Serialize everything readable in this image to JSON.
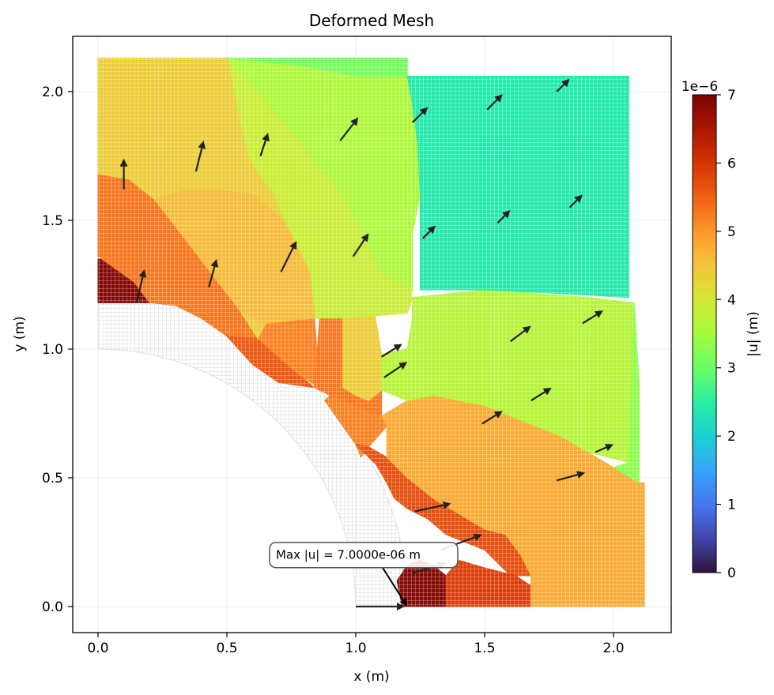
{
  "chart_data": {
    "type": "heatmap",
    "title": "Deformed Mesh",
    "xlabel": "x (m)",
    "ylabel": "y (m)",
    "xlim": [
      -0.1,
      2.22
    ],
    "ylim": [
      -0.1,
      2.22
    ],
    "xticks": [
      0.0,
      0.5,
      1.0,
      1.5,
      2.0
    ],
    "xtick_labels": [
      "0.0",
      "0.5",
      "1.0",
      "1.5",
      "2.0"
    ],
    "yticks": [
      0.0,
      0.5,
      1.0,
      1.5,
      2.0
    ],
    "ytick_labels": [
      "0.0",
      "0.5",
      "1.0",
      "1.5",
      "2.0"
    ],
    "grid": true,
    "colormap": "turbo",
    "colorbar": {
      "label": "|u| (m)",
      "scale_label": "1e−6",
      "vmin": 0,
      "vmax": 7,
      "ticks": [
        0,
        1,
        2,
        3,
        4,
        5,
        6,
        7
      ],
      "tick_labels": [
        "0",
        "1",
        "2",
        "3",
        "4",
        "5",
        "6",
        "7"
      ]
    },
    "undeformed_region": {
      "outer_quarter_circle_radius": 1.2,
      "inner_quarter_circle_radius": 1.0,
      "color": "#d8d8d8"
    },
    "regions": [
      {
        "value": 6.9,
        "points": [
          [
            0.0,
            1.35
          ],
          [
            0.12,
            1.33
          ],
          [
            0.18,
            1.25
          ],
          [
            0.22,
            1.18
          ],
          [
            0.0,
            1.18
          ]
        ]
      },
      {
        "value": 5.3,
        "points": [
          [
            0.0,
            1.68
          ],
          [
            0.12,
            1.66
          ],
          [
            0.22,
            1.58
          ],
          [
            0.32,
            1.45
          ],
          [
            0.42,
            1.32
          ],
          [
            0.55,
            1.15
          ],
          [
            0.62,
            1.04
          ],
          [
            0.5,
            1.05
          ],
          [
            0.4,
            1.12
          ],
          [
            0.3,
            1.17
          ],
          [
            0.2,
            1.18
          ],
          [
            0.14,
            1.26
          ],
          [
            0.0,
            1.36
          ]
        ]
      },
      {
        "value": 5.6,
        "points": [
          [
            0.62,
            1.04
          ],
          [
            0.7,
            0.97
          ],
          [
            0.78,
            0.9
          ],
          [
            0.84,
            0.85
          ],
          [
            0.7,
            0.87
          ],
          [
            0.6,
            0.94
          ],
          [
            0.5,
            1.05
          ]
        ]
      },
      {
        "value": 5.2,
        "points": [
          [
            0.62,
            1.04
          ],
          [
            0.65,
            1.1
          ],
          [
            0.84,
            1.12
          ],
          [
            0.86,
            0.85
          ],
          [
            0.78,
            0.9
          ]
        ]
      },
      {
        "value": 5.3,
        "points": [
          [
            0.84,
            0.85
          ],
          [
            0.86,
            1.12
          ],
          [
            0.95,
            1.12
          ],
          [
            0.95,
            0.85
          ],
          [
            1.0,
            0.82
          ],
          [
            1.05,
            0.8
          ],
          [
            1.1,
            0.84
          ],
          [
            1.1,
            0.74
          ],
          [
            1.0,
            0.78
          ],
          [
            0.9,
            0.82
          ]
        ]
      },
      {
        "value": 4.4,
        "points": [
          [
            0.95,
            1.12
          ],
          [
            1.2,
            1.14
          ],
          [
            1.22,
            1.2
          ],
          [
            1.18,
            1.2
          ],
          [
            1.1,
            1.22
          ],
          [
            1.06,
            1.2
          ],
          [
            1.08,
            1.1
          ],
          [
            1.1,
            0.98
          ],
          [
            1.1,
            0.84
          ],
          [
            1.05,
            0.8
          ],
          [
            1.0,
            0.82
          ],
          [
            0.95,
            0.85
          ]
        ]
      },
      {
        "value": 5.2,
        "points": [
          [
            0.9,
            0.82
          ],
          [
            1.0,
            0.78
          ],
          [
            1.1,
            0.74
          ],
          [
            1.12,
            0.7
          ],
          [
            1.05,
            0.62
          ],
          [
            1.02,
            0.58
          ],
          [
            1.0,
            0.63
          ],
          [
            0.95,
            0.7
          ],
          [
            0.88,
            0.8
          ]
        ]
      },
      {
        "value": 5.7,
        "points": [
          [
            1.0,
            0.63
          ],
          [
            1.05,
            0.62
          ],
          [
            1.12,
            0.58
          ],
          [
            1.2,
            0.5
          ],
          [
            1.3,
            0.42
          ],
          [
            1.4,
            0.36
          ],
          [
            1.5,
            0.3
          ],
          [
            1.58,
            0.28
          ],
          [
            1.64,
            0.2
          ],
          [
            1.68,
            0.12
          ],
          [
            1.6,
            0.12
          ],
          [
            1.5,
            0.22
          ],
          [
            1.4,
            0.26
          ],
          [
            1.35,
            0.28
          ],
          [
            1.28,
            0.34
          ],
          [
            1.2,
            0.38
          ],
          [
            1.15,
            0.42
          ],
          [
            1.12,
            0.48
          ],
          [
            1.08,
            0.55
          ],
          [
            1.03,
            0.6
          ]
        ]
      },
      {
        "value": 6.9,
        "points": [
          [
            1.18,
            0.0
          ],
          [
            1.35,
            0.0
          ],
          [
            1.35,
            0.12
          ],
          [
            1.3,
            0.16
          ],
          [
            1.25,
            0.18
          ],
          [
            1.2,
            0.16
          ],
          [
            1.16,
            0.1
          ]
        ]
      },
      {
        "value": 5.9,
        "points": [
          [
            1.35,
            0.0
          ],
          [
            1.68,
            0.0
          ],
          [
            1.68,
            0.08
          ],
          [
            1.62,
            0.12
          ],
          [
            1.5,
            0.15
          ],
          [
            1.4,
            0.18
          ],
          [
            1.35,
            0.12
          ]
        ]
      },
      {
        "value": 4.8,
        "points": [
          [
            1.1,
            0.74
          ],
          [
            1.2,
            0.8
          ],
          [
            1.3,
            0.82
          ],
          [
            1.4,
            0.8
          ],
          [
            1.5,
            0.78
          ],
          [
            1.6,
            0.74
          ],
          [
            1.7,
            0.7
          ],
          [
            1.8,
            0.66
          ],
          [
            1.9,
            0.6
          ],
          [
            2.0,
            0.54
          ],
          [
            2.1,
            0.48
          ],
          [
            2.12,
            0.48
          ],
          [
            2.12,
            0.0
          ],
          [
            1.68,
            0.0
          ],
          [
            1.68,
            0.12
          ],
          [
            1.64,
            0.2
          ],
          [
            1.58,
            0.28
          ],
          [
            1.5,
            0.3
          ],
          [
            1.4,
            0.36
          ],
          [
            1.3,
            0.42
          ],
          [
            1.2,
            0.5
          ],
          [
            1.12,
            0.58
          ],
          [
            1.12,
            0.7
          ]
        ]
      },
      {
        "value": 3.7,
        "points": [
          [
            1.1,
            0.98
          ],
          [
            1.2,
            1.0
          ],
          [
            1.22,
            1.12
          ],
          [
            1.22,
            1.2
          ],
          [
            1.5,
            1.23
          ],
          [
            1.9,
            1.2
          ],
          [
            2.08,
            1.18
          ],
          [
            2.06,
            0.56
          ],
          [
            1.9,
            0.6
          ],
          [
            1.8,
            0.66
          ],
          [
            1.7,
            0.7
          ],
          [
            1.6,
            0.74
          ],
          [
            1.5,
            0.78
          ],
          [
            1.4,
            0.8
          ],
          [
            1.3,
            0.82
          ],
          [
            1.2,
            0.8
          ],
          [
            1.1,
            0.84
          ]
        ]
      },
      {
        "value": 3.3,
        "points": [
          [
            2.06,
            0.56
          ],
          [
            2.08,
            1.18
          ],
          [
            2.1,
            0.86
          ],
          [
            2.1,
            0.48
          ],
          [
            2.0,
            0.54
          ]
        ]
      },
      {
        "value": 3.9,
        "points": [
          [
            0.5,
            2.13
          ],
          [
            0.62,
            2.0
          ],
          [
            0.75,
            1.85
          ],
          [
            0.85,
            1.72
          ],
          [
            0.95,
            1.6
          ],
          [
            1.0,
            1.5
          ],
          [
            1.05,
            1.4
          ],
          [
            1.1,
            1.3
          ],
          [
            1.22,
            1.23
          ],
          [
            1.2,
            1.14
          ],
          [
            0.95,
            1.12
          ],
          [
            0.84,
            1.12
          ],
          [
            0.82,
            1.3
          ],
          [
            0.72,
            1.5
          ],
          [
            0.68,
            1.6
          ],
          [
            0.62,
            1.68
          ],
          [
            0.58,
            1.75
          ],
          [
            0.55,
            1.88
          ]
        ]
      },
      {
        "value": 3.6,
        "points": [
          [
            0.5,
            2.13
          ],
          [
            1.2,
            2.13
          ],
          [
            1.2,
            2.06
          ],
          [
            1.22,
            1.95
          ],
          [
            1.24,
            1.8
          ],
          [
            1.25,
            1.6
          ],
          [
            1.22,
            1.45
          ],
          [
            1.22,
            1.23
          ],
          [
            1.1,
            1.3
          ],
          [
            1.05,
            1.4
          ],
          [
            1.0,
            1.5
          ],
          [
            0.95,
            1.6
          ],
          [
            0.85,
            1.72
          ],
          [
            0.75,
            1.85
          ],
          [
            0.62,
            2.0
          ]
        ]
      },
      {
        "value": 4.4,
        "points": [
          [
            0.0,
            2.13
          ],
          [
            0.5,
            2.13
          ],
          [
            0.55,
            1.88
          ],
          [
            0.58,
            1.75
          ],
          [
            0.62,
            1.68
          ],
          [
            0.68,
            1.6
          ],
          [
            0.72,
            1.5
          ],
          [
            0.82,
            1.3
          ],
          [
            0.84,
            1.12
          ],
          [
            0.65,
            1.1
          ],
          [
            0.62,
            1.04
          ],
          [
            0.55,
            1.15
          ],
          [
            0.42,
            1.32
          ],
          [
            0.32,
            1.45
          ],
          [
            0.22,
            1.58
          ],
          [
            0.12,
            1.66
          ],
          [
            0.0,
            1.68
          ]
        ]
      },
      {
        "value": 4.6,
        "points": [
          [
            0.22,
            1.58
          ],
          [
            0.32,
            1.45
          ],
          [
            0.42,
            1.32
          ],
          [
            0.55,
            1.15
          ],
          [
            0.65,
            1.1
          ],
          [
            0.84,
            1.12
          ],
          [
            0.82,
            1.3
          ],
          [
            0.72,
            1.5
          ],
          [
            0.6,
            1.6
          ],
          [
            0.45,
            1.62
          ],
          [
            0.35,
            1.62
          ]
        ]
      },
      {
        "value": 3.1,
        "points": [
          [
            0.5,
            2.13
          ],
          [
            1.2,
            2.13
          ],
          [
            1.2,
            2.06
          ],
          [
            1.0,
            2.06
          ],
          [
            0.8,
            2.1
          ],
          [
            0.6,
            2.12
          ]
        ]
      },
      {
        "value": 2.4,
        "points": [
          [
            1.2,
            2.06
          ],
          [
            2.06,
            2.06
          ],
          [
            2.06,
            1.2
          ],
          [
            1.9,
            1.21
          ],
          [
            1.5,
            1.23
          ],
          [
            1.25,
            1.23
          ],
          [
            1.25,
            1.6
          ],
          [
            1.24,
            1.8
          ],
          [
            1.22,
            1.95
          ]
        ]
      }
    ],
    "arrows": [
      {
        "x": 0.1,
        "y": 1.62,
        "u": 0.0,
        "v": 0.12
      },
      {
        "x": 0.15,
        "y": 1.18,
        "u": 0.03,
        "v": 0.13
      },
      {
        "x": 0.38,
        "y": 1.69,
        "u": 0.03,
        "v": 0.12
      },
      {
        "x": 0.43,
        "y": 1.24,
        "u": 0.03,
        "v": 0.11
      },
      {
        "x": 0.63,
        "y": 1.75,
        "u": 0.03,
        "v": 0.09
      },
      {
        "x": 0.71,
        "y": 1.3,
        "u": 0.06,
        "v": 0.12
      },
      {
        "x": 0.94,
        "y": 1.81,
        "u": 0.07,
        "v": 0.09
      },
      {
        "x": 0.99,
        "y": 1.36,
        "u": 0.06,
        "v": 0.09
      },
      {
        "x": 1.22,
        "y": 1.88,
        "u": 0.06,
        "v": 0.06
      },
      {
        "x": 1.26,
        "y": 1.43,
        "u": 0.05,
        "v": 0.05
      },
      {
        "x": 1.51,
        "y": 1.93,
        "u": 0.06,
        "v": 0.06
      },
      {
        "x": 1.55,
        "y": 1.49,
        "u": 0.05,
        "v": 0.05
      },
      {
        "x": 1.78,
        "y": 2.0,
        "u": 0.05,
        "v": 0.05
      },
      {
        "x": 1.83,
        "y": 1.55,
        "u": 0.05,
        "v": 0.05
      },
      {
        "x": 1.1,
        "y": 0.97,
        "u": 0.08,
        "v": 0.05
      },
      {
        "x": 1.11,
        "y": 0.89,
        "u": 0.09,
        "v": 0.06
      },
      {
        "x": 1.6,
        "y": 1.03,
        "u": 0.08,
        "v": 0.06
      },
      {
        "x": 1.88,
        "y": 1.1,
        "u": 0.08,
        "v": 0.05
      },
      {
        "x": 1.68,
        "y": 0.8,
        "u": 0.08,
        "v": 0.05
      },
      {
        "x": 1.49,
        "y": 0.71,
        "u": 0.08,
        "v": 0.05
      },
      {
        "x": 1.93,
        "y": 0.6,
        "u": 0.07,
        "v": 0.03
      },
      {
        "x": 1.23,
        "y": 0.37,
        "u": 0.14,
        "v": 0.03
      },
      {
        "x": 1.78,
        "y": 0.49,
        "u": 0.11,
        "v": 0.03
      },
      {
        "x": 1.22,
        "y": 0.13,
        "u": 0.13,
        "v": 0.04
      },
      {
        "x": 1.33,
        "y": 0.22,
        "u": 0.16,
        "v": 0.06
      },
      {
        "x": 1.0,
        "y": 0.0,
        "u": 0.19,
        "v": 0.0
      }
    ],
    "annotation": {
      "text": "Max |u| = 7.0000e-06 m",
      "text_at": [
        0.69,
        0.2
      ],
      "points_to": [
        1.2,
        0.0
      ]
    }
  }
}
